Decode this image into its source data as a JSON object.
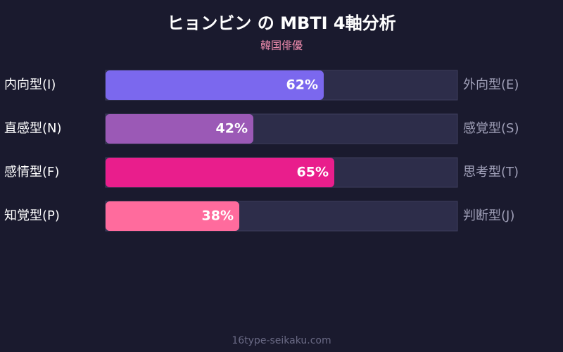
{
  "chart_data": {
    "type": "bar",
    "orientation": "horizontal",
    "title": "ヒョンビン の MBTI 4軸分析",
    "subtitle": "韓国俳優",
    "categories": [
      "内向型(I)",
      "直感型(N)",
      "感情型(F)",
      "知覚型(P)"
    ],
    "right_labels": [
      "外向型(E)",
      "感覚型(S)",
      "思考型(T)",
      "判断型(J)"
    ],
    "values": [
      62,
      42,
      65,
      38
    ],
    "value_labels": [
      "62%",
      "42%",
      "65%",
      "38%"
    ],
    "colors": [
      "#7b68ee",
      "#9b59b6",
      "#e91e8c",
      "#ff6b9d"
    ],
    "xlim": [
      0,
      100
    ],
    "footer": "16type-seikaku.com"
  }
}
